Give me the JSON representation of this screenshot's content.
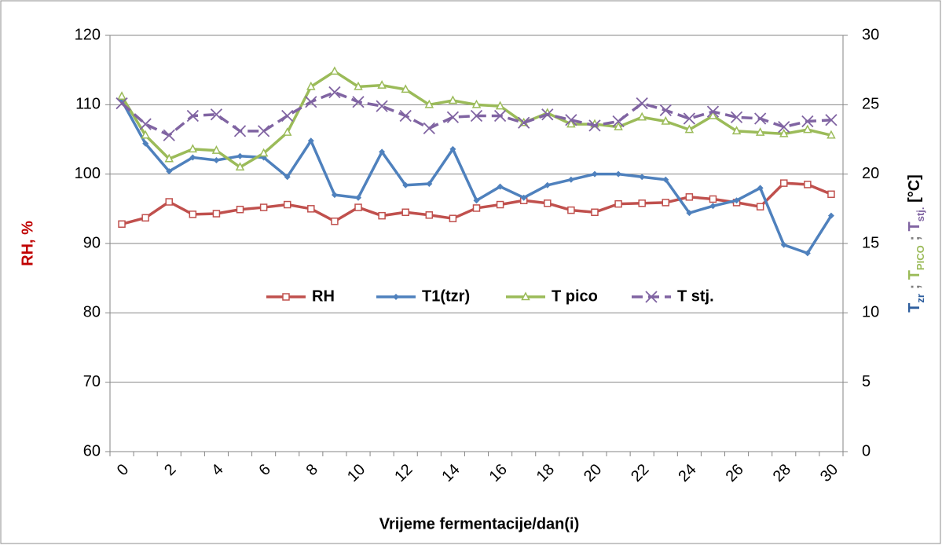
{
  "chart_data": {
    "type": "line",
    "categories": [
      "0",
      null,
      "2",
      null,
      "4",
      null,
      "6",
      null,
      "8",
      null,
      "10",
      null,
      "12",
      null,
      "14",
      null,
      "16",
      null,
      "18",
      null,
      "20",
      null,
      "22",
      null,
      "24",
      null,
      "26",
      null,
      "28",
      null,
      "30"
    ],
    "xlabel": "Vrijeme fermentacije/dan(i)",
    "ylabel": "RH, %",
    "ylabel_color": "#c00000",
    "y2label": [
      {
        "text": "T",
        "sub": "zr",
        "color": "#2e5e9e"
      },
      {
        "text": " ; ",
        "color": "#7f7f7f"
      },
      {
        "text": "T",
        "sub": "PICO",
        "color": "#9bbb59"
      },
      {
        "text": " ; ",
        "color": "#7f7f7f"
      },
      {
        "text": "T",
        "sub": "stj.",
        "color": "#8064a2"
      },
      {
        "text": " [°C]",
        "color": "#000000"
      }
    ],
    "ylim": [
      60,
      120
    ],
    "yticks": [
      60,
      70,
      80,
      90,
      100,
      110,
      120
    ],
    "y2lim": [
      0,
      30
    ],
    "y2ticks": [
      0,
      5,
      10,
      15,
      20,
      25,
      30
    ],
    "grid": true,
    "legend": "center",
    "series": [
      {
        "name": "RH",
        "color": "#c0504d",
        "marker": "square",
        "values": [
          92.8,
          93.7,
          96.0,
          94.2,
          94.3,
          94.9,
          95.2,
          95.6,
          95.0,
          93.2,
          95.2,
          94.0,
          94.5,
          94.1,
          93.6,
          95.1,
          95.6,
          96.2,
          95.8,
          94.8,
          94.5,
          95.7,
          95.8,
          95.9,
          96.7,
          96.4,
          95.9,
          95.3,
          98.7,
          98.5,
          97.1
        ]
      },
      {
        "name": "T1(tzr)",
        "color": "#4f81bd",
        "marker": "diamond",
        "axis": "y2",
        "values": [
          25.3,
          22.2,
          20.2,
          21.2,
          21.0,
          21.3,
          21.2,
          19.8,
          22.4,
          18.5,
          18.3,
          21.6,
          19.2,
          19.3,
          21.8,
          18.1,
          19.1,
          18.3,
          19.2,
          19.6,
          20.0,
          20.0,
          19.8,
          19.6,
          17.2,
          17.7,
          18.1,
          19.0,
          14.9,
          14.3,
          17.0
        ]
      },
      {
        "name": "T pico",
        "color": "#9bbb59",
        "marker": "triangle",
        "axis": "y2",
        "values": [
          25.6,
          22.8,
          21.1,
          21.8,
          21.7,
          20.5,
          21.5,
          23.0,
          26.3,
          27.4,
          26.3,
          26.4,
          26.1,
          25.0,
          25.3,
          25.0,
          24.9,
          23.7,
          24.4,
          23.6,
          23.6,
          23.4,
          24.1,
          23.8,
          23.2,
          24.2,
          23.1,
          23.0,
          22.9,
          23.2,
          22.8
        ]
      },
      {
        "name": "T stj.",
        "color": "#8064a2",
        "marker": "x",
        "dashed": true,
        "axis": "y2",
        "values": [
          25.1,
          23.6,
          22.8,
          24.2,
          24.3,
          23.1,
          23.1,
          24.2,
          25.2,
          25.9,
          25.2,
          24.9,
          24.2,
          23.3,
          24.1,
          24.2,
          24.2,
          23.7,
          24.3,
          23.9,
          23.5,
          23.8,
          25.1,
          24.6,
          24.0,
          24.5,
          24.1,
          24.0,
          23.4,
          23.8,
          23.9
        ]
      }
    ]
  }
}
